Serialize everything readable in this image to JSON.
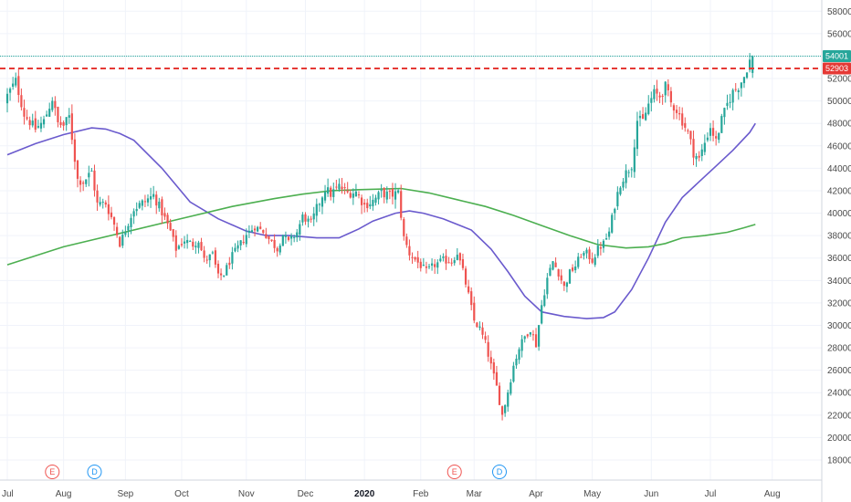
{
  "chart_data": {
    "type": "candlestick",
    "title": "",
    "xlabel": "",
    "ylabel": "",
    "y_ticks": [
      18000,
      20000,
      22000,
      24000,
      26000,
      28000,
      30000,
      32000,
      34000,
      36000,
      38000,
      40000,
      42000,
      44000,
      46000,
      48000,
      50000,
      52000,
      54000,
      56000,
      58000
    ],
    "ylim": [
      16800,
      58500
    ],
    "x_axis": {
      "start_label": "Jul",
      "months": [
        "Jul",
        "Aug",
        "Sep",
        "Oct",
        "Nov",
        "Dec",
        "2020",
        "Feb",
        "Mar",
        "Apr",
        "May",
        "Jun",
        "Jul",
        "Aug"
      ],
      "bold_labels": [
        "2020"
      ]
    },
    "grid": true,
    "price_line": {
      "value": 54001,
      "label": "54001",
      "color": "#26a69a"
    },
    "resistance_line": {
      "value": 52903,
      "label": "52903",
      "color": "#e53935",
      "style": "dashed"
    },
    "colors": {
      "up": "#26a69a",
      "down": "#ef5350",
      "ma_fast": "#6a5acd",
      "ma_slow": "#4caf50"
    },
    "moving_averages": [
      {
        "key": "ma_fast",
        "points": [
          [
            0,
            45200
          ],
          [
            10,
            46200
          ],
          [
            20,
            47000
          ],
          [
            30,
            47600
          ],
          [
            35,
            47500
          ],
          [
            40,
            47100
          ],
          [
            45,
            46500
          ],
          [
            55,
            44000
          ],
          [
            65,
            41000
          ],
          [
            75,
            39500
          ],
          [
            85,
            38400
          ],
          [
            92,
            38000
          ],
          [
            100,
            38000
          ],
          [
            110,
            37800
          ],
          [
            118,
            37800
          ],
          [
            125,
            38600
          ],
          [
            130,
            39300
          ],
          [
            138,
            40000
          ],
          [
            143,
            40200
          ],
          [
            148,
            40000
          ],
          [
            155,
            39500
          ],
          [
            165,
            38500
          ],
          [
            172,
            36800
          ],
          [
            178,
            34800
          ],
          [
            184,
            32600
          ],
          [
            190,
            31200
          ],
          [
            198,
            30800
          ],
          [
            206,
            30600
          ],
          [
            212,
            30700
          ],
          [
            216,
            31200
          ],
          [
            222,
            33200
          ],
          [
            228,
            36000
          ],
          [
            234,
            39200
          ],
          [
            240,
            41400
          ],
          [
            246,
            42800
          ],
          [
            252,
            44200
          ],
          [
            258,
            45600
          ],
          [
            264,
            47200
          ],
          [
            266,
            48000
          ]
        ]
      },
      {
        "key": "ma_slow",
        "points": [
          [
            0,
            35400
          ],
          [
            20,
            37000
          ],
          [
            40,
            38200
          ],
          [
            60,
            39400
          ],
          [
            80,
            40600
          ],
          [
            95,
            41300
          ],
          [
            105,
            41700
          ],
          [
            115,
            42000
          ],
          [
            125,
            42100
          ],
          [
            140,
            42200
          ],
          [
            150,
            41800
          ],
          [
            160,
            41200
          ],
          [
            170,
            40600
          ],
          [
            180,
            39800
          ],
          [
            190,
            38900
          ],
          [
            200,
            38000
          ],
          [
            210,
            37200
          ],
          [
            220,
            36900
          ],
          [
            228,
            37000
          ],
          [
            234,
            37300
          ],
          [
            240,
            37800
          ],
          [
            248,
            38000
          ],
          [
            256,
            38300
          ],
          [
            262,
            38700
          ],
          [
            266,
            39000
          ]
        ]
      }
    ],
    "events": [
      {
        "label": "E",
        "bar": 16,
        "color": "#ef5350"
      },
      {
        "label": "D",
        "bar": 31,
        "color": "#2196f3"
      },
      {
        "label": "E",
        "bar": 159,
        "color": "#ef5350"
      },
      {
        "label": "D",
        "bar": 175,
        "color": "#2196f3"
      }
    ],
    "keypoints": [
      [
        0,
        50500
      ],
      [
        3,
        51800
      ],
      [
        6,
        48800
      ],
      [
        10,
        47500
      ],
      [
        13,
        48200
      ],
      [
        16,
        50200
      ],
      [
        18,
        48000
      ],
      [
        20,
        47800
      ],
      [
        22,
        48600
      ],
      [
        25,
        43000
      ],
      [
        27,
        42800
      ],
      [
        30,
        43700
      ],
      [
        32,
        40800
      ],
      [
        35,
        40900
      ],
      [
        38,
        39000
      ],
      [
        40,
        37300
      ],
      [
        42,
        38500
      ],
      [
        45,
        40400
      ],
      [
        48,
        40900
      ],
      [
        52,
        41600
      ],
      [
        55,
        40100
      ],
      [
        58,
        38400
      ],
      [
        60,
        36800
      ],
      [
        63,
        37600
      ],
      [
        66,
        37200
      ],
      [
        68,
        37600
      ],
      [
        70,
        35800
      ],
      [
        73,
        36300
      ],
      [
        75,
        34300
      ],
      [
        77,
        34600
      ],
      [
        80,
        36200
      ],
      [
        83,
        37300
      ],
      [
        85,
        38100
      ],
      [
        88,
        38800
      ],
      [
        91,
        38400
      ],
      [
        93,
        37700
      ],
      [
        96,
        36800
      ],
      [
        98,
        38100
      ],
      [
        100,
        37400
      ],
      [
        103,
        38300
      ],
      [
        105,
        39700
      ],
      [
        108,
        39100
      ],
      [
        110,
        40400
      ],
      [
        113,
        42200
      ],
      [
        115,
        41700
      ],
      [
        118,
        42400
      ],
      [
        121,
        41800
      ],
      [
        124,
        41900
      ],
      [
        127,
        40700
      ],
      [
        130,
        41100
      ],
      [
        133,
        41800
      ],
      [
        136,
        41600
      ],
      [
        139,
        41800
      ],
      [
        141,
        37800
      ],
      [
        143,
        36400
      ],
      [
        146,
        35600
      ],
      [
        149,
        34800
      ],
      [
        152,
        35400
      ],
      [
        155,
        35800
      ],
      [
        158,
        35700
      ],
      [
        160,
        36500
      ],
      [
        162,
        34800
      ],
      [
        164,
        32700
      ],
      [
        166,
        30400
      ],
      [
        168,
        29700
      ],
      [
        170,
        28400
      ],
      [
        172,
        26400
      ],
      [
        174,
        24500
      ],
      [
        176,
        22000
      ],
      [
        178,
        24100
      ],
      [
        180,
        26400
      ],
      [
        182,
        28000
      ],
      [
        184,
        29000
      ],
      [
        186,
        29700
      ],
      [
        188,
        28300
      ],
      [
        190,
        31800
      ],
      [
        192,
        34200
      ],
      [
        194,
        35700
      ],
      [
        196,
        34700
      ],
      [
        198,
        33400
      ],
      [
        200,
        34700
      ],
      [
        202,
        35300
      ],
      [
        204,
        36300
      ],
      [
        206,
        36400
      ],
      [
        208,
        35800
      ],
      [
        210,
        36800
      ],
      [
        212,
        37300
      ],
      [
        214,
        38300
      ],
      [
        216,
        40800
      ],
      [
        218,
        42700
      ],
      [
        220,
        43600
      ],
      [
        222,
        44300
      ],
      [
        224,
        48300
      ],
      [
        226,
        48200
      ],
      [
        228,
        49700
      ],
      [
        230,
        50700
      ],
      [
        232,
        50400
      ],
      [
        234,
        51300
      ],
      [
        236,
        49800
      ],
      [
        238,
        49200
      ],
      [
        240,
        48200
      ],
      [
        242,
        47200
      ],
      [
        244,
        45400
      ],
      [
        246,
        44800
      ],
      [
        248,
        46300
      ],
      [
        250,
        47700
      ],
      [
        252,
        46400
      ],
      [
        254,
        48300
      ],
      [
        256,
        49700
      ],
      [
        258,
        50800
      ],
      [
        260,
        51300
      ],
      [
        262,
        52200
      ],
      [
        264,
        53600
      ],
      [
        265,
        54001
      ]
    ]
  }
}
